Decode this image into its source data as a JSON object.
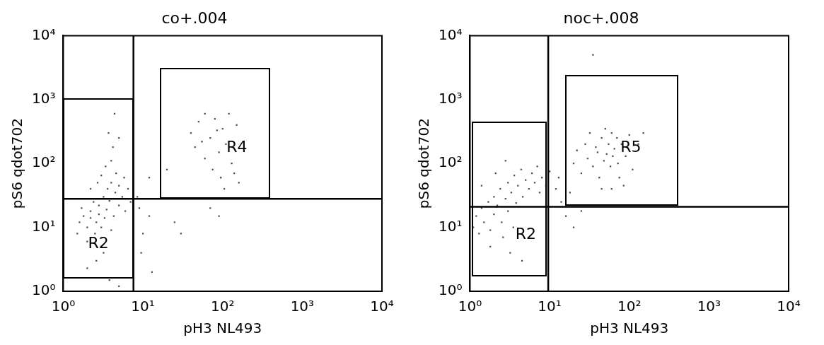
{
  "chart_data": [
    {
      "type": "scatter",
      "title": "co+.004",
      "xlabel": "pH3 NL493",
      "ylabel": "pS6 qdot702",
      "log": "xy",
      "grid": false,
      "legend": false,
      "marker": "square",
      "xlim": [
        1,
        10000
      ],
      "ylim": [
        1,
        10000
      ],
      "xticks": [
        {
          "value": 1,
          "label": "10⁰"
        },
        {
          "value": 10,
          "label": "10¹"
        },
        {
          "value": 100,
          "label": "10²"
        },
        {
          "value": 1000,
          "label": "10³"
        },
        {
          "value": 10000,
          "label": "10⁴"
        }
      ],
      "yticks": [
        {
          "value": 1,
          "label": "10⁰"
        },
        {
          "value": 10,
          "label": "10¹"
        },
        {
          "value": 100,
          "label": "10²"
        },
        {
          "value": 1000,
          "label": "10³"
        },
        {
          "value": 10000,
          "label": "10⁴"
        }
      ],
      "series": [
        {
          "color": "#505050",
          "x": [
            1.5,
            1.6,
            1.8,
            1.7,
            2,
            2,
            2.2,
            2.2,
            2.4,
            2.5,
            2.6,
            2.8,
            2.8,
            3,
            3,
            3.2,
            3.3,
            3.5,
            3.6,
            3.8,
            4,
            4,
            4.3,
            4.5,
            4.6,
            5,
            5,
            5.5,
            5.8,
            6,
            6.5,
            7,
            2.2,
            2.7,
            3,
            3.4,
            4,
            4.2,
            5,
            3.7,
            3.2,
            2.6,
            2,
            3.8,
            5,
            4.4,
            8.5,
            9,
            10,
            9.5,
            12,
            13,
            25,
            30,
            12,
            20,
            40,
            50,
            60,
            70,
            80,
            90,
            100,
            110,
            120,
            130,
            150,
            60,
            75,
            95,
            140,
            45,
            55,
            85,
            105,
            160,
            70,
            90
          ],
          "values": [
            8,
            12,
            15,
            20,
            6,
            10,
            14,
            18,
            25,
            8,
            12,
            16,
            22,
            5,
            10,
            30,
            14,
            19,
            40,
            26,
            9,
            50,
            15,
            35,
            70,
            22,
            45,
            30,
            60,
            18,
            40,
            25,
            40,
            50,
            65,
            90,
            110,
            180,
            250,
            300,
            4,
            3,
            2.3,
            1.5,
            1.2,
            600,
            30,
            20,
            8,
            4,
            15,
            2,
            12,
            8,
            60,
            80,
            300,
            450,
            600,
            250,
            500,
            150,
            350,
            200,
            600,
            100,
            400,
            120,
            80,
            60,
            70,
            180,
            220,
            330,
            40,
            50,
            20,
            15
          ]
        }
      ],
      "ref_lines": [
        {
          "axis": "x",
          "value": 7.6,
          "color": "#000000"
        },
        {
          "axis": "y",
          "value": 28,
          "color": "#000000"
        }
      ],
      "annotations": [
        "R2",
        "R4"
      ]
    },
    {
      "type": "scatter",
      "title": "noc+.008",
      "xlabel": "pH3 NL493",
      "ylabel": "pS6 qdot702",
      "log": "xy",
      "grid": false,
      "legend": false,
      "marker": "square",
      "xlim": [
        1,
        10000
      ],
      "ylim": [
        1,
        10000
      ],
      "xticks": [
        {
          "value": 1,
          "label": "10⁰"
        },
        {
          "value": 10,
          "label": "10¹"
        },
        {
          "value": 100,
          "label": "10²"
        },
        {
          "value": 1000,
          "label": "10³"
        },
        {
          "value": 10000,
          "label": "10⁴"
        }
      ],
      "yticks": [
        {
          "value": 1,
          "label": "10⁰"
        },
        {
          "value": 10,
          "label": "10¹"
        },
        {
          "value": 100,
          "label": "10²"
        },
        {
          "value": 1000,
          "label": "10³"
        },
        {
          "value": 10000,
          "label": "10⁴"
        }
      ],
      "series": [
        {
          "color": "#505050",
          "x": [
            1.1,
            1.2,
            1.3,
            1.4,
            1.5,
            1.7,
            1.8,
            2,
            2,
            2.2,
            2.4,
            2.5,
            2.8,
            3,
            3,
            3.3,
            3.6,
            3.8,
            4,
            4.4,
            4.6,
            5,
            5.5,
            6,
            6.5,
            7,
            7.5,
            8,
            9,
            10,
            2.6,
            3.5,
            1.8,
            3.2,
            4.5,
            2.1,
            2.8,
            1.4,
            12,
            13,
            14,
            16,
            20,
            25,
            18,
            20,
            22,
            25,
            28,
            30,
            32,
            35,
            38,
            40,
            42,
            45,
            48,
            50,
            52,
            55,
            58,
            60,
            62,
            65,
            70,
            72,
            75,
            80,
            90,
            100,
            110,
            130,
            150,
            45,
            60,
            85,
            35
          ],
          "values": [
            10,
            15,
            8,
            20,
            12,
            25,
            9,
            16,
            30,
            22,
            40,
            12,
            28,
            50,
            18,
            35,
            65,
            24,
            45,
            80,
            30,
            55,
            40,
            70,
            50,
            90,
            35,
            60,
            45,
            75,
            7,
            10,
            5,
            4,
            3,
            70,
            110,
            45,
            40,
            60,
            25,
            15,
            10,
            18,
            35,
            100,
            160,
            70,
            200,
            120,
            300,
            90,
            180,
            150,
            60,
            250,
            110,
            350,
            140,
            200,
            90,
            300,
            130,
            170,
            250,
            100,
            60,
            200,
            130,
            280,
            80,
            200,
            300,
            40,
            40,
            45,
            5000
          ]
        }
      ],
      "ref_lines": [
        {
          "axis": "x",
          "value": 9.6,
          "color": "#000000"
        },
        {
          "axis": "y",
          "value": 21,
          "color": "#000000"
        }
      ],
      "annotations": [
        "R2",
        "R5"
      ]
    }
  ]
}
